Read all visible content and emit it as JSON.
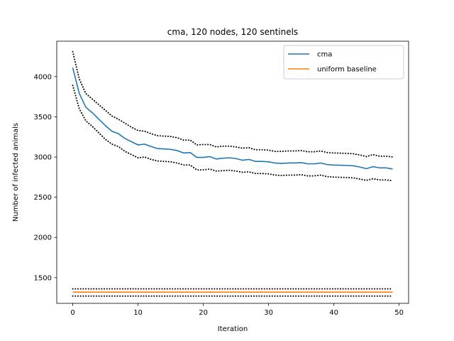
{
  "chart_data": {
    "type": "line",
    "title": "cma, 120 nodes, 120 sentinels",
    "xlabel": "Iteration",
    "ylabel": "Number of infected animals",
    "xlim": [
      -2.45,
      51.45
    ],
    "ylim": [
      1180,
      4440
    ],
    "x_ticks": [
      0,
      10,
      20,
      30,
      40,
      50
    ],
    "y_ticks": [
      1500,
      2000,
      2500,
      3000,
      3500,
      4000
    ],
    "legend_position": "top-right",
    "grid": false,
    "x": [
      0,
      1,
      2,
      3,
      4,
      5,
      6,
      7,
      8,
      9,
      10,
      11,
      12,
      13,
      14,
      15,
      16,
      17,
      18,
      19,
      20,
      21,
      22,
      23,
      24,
      25,
      26,
      27,
      28,
      29,
      30,
      31,
      32,
      33,
      34,
      35,
      36,
      37,
      38,
      39,
      40,
      41,
      42,
      43,
      44,
      45,
      46,
      47,
      48,
      49
    ],
    "series": [
      {
        "name": "cma",
        "color": "#1f77b4",
        "style": "solid",
        "values": [
          4110,
          3790,
          3620,
          3550,
          3470,
          3390,
          3320,
          3290,
          3230,
          3190,
          3150,
          3160,
          3130,
          3105,
          3100,
          3095,
          3080,
          3050,
          3055,
          2995,
          2995,
          3005,
          2975,
          2985,
          2990,
          2980,
          2960,
          2970,
          2945,
          2945,
          2940,
          2925,
          2920,
          2925,
          2925,
          2930,
          2915,
          2915,
          2925,
          2905,
          2900,
          2898,
          2895,
          2890,
          2875,
          2855,
          2880,
          2865,
          2865,
          2850
        ]
      },
      {
        "name": "",
        "color": "#000000",
        "style": "dotted",
        "values": [
          4310,
          3970,
          3790,
          3720,
          3650,
          3580,
          3510,
          3470,
          3420,
          3370,
          3330,
          3320,
          3290,
          3265,
          3260,
          3255,
          3240,
          3210,
          3210,
          3150,
          3155,
          3155,
          3125,
          3135,
          3135,
          3125,
          3110,
          3115,
          3090,
          3090,
          3085,
          3070,
          3070,
          3075,
          3075,
          3080,
          3065,
          3065,
          3075,
          3055,
          3050,
          3048,
          3045,
          3040,
          3025,
          3005,
          3030,
          3010,
          3010,
          3000
        ]
      },
      {
        "name": "",
        "color": "#000000",
        "style": "dotted",
        "values": [
          3890,
          3600,
          3450,
          3380,
          3300,
          3220,
          3160,
          3130,
          3070,
          3030,
          2990,
          3000,
          2970,
          2950,
          2945,
          2940,
          2925,
          2900,
          2900,
          2840,
          2840,
          2850,
          2825,
          2830,
          2835,
          2825,
          2810,
          2815,
          2795,
          2795,
          2790,
          2775,
          2770,
          2775,
          2775,
          2780,
          2765,
          2765,
          2775,
          2755,
          2750,
          2748,
          2745,
          2740,
          2725,
          2710,
          2730,
          2715,
          2715,
          2705
        ]
      },
      {
        "name": "uniform baseline",
        "color": "#ff7f0e",
        "style": "solid",
        "values": [
          1320,
          1320,
          1320,
          1320,
          1320,
          1320,
          1320,
          1320,
          1320,
          1320,
          1320,
          1320,
          1320,
          1320,
          1320,
          1320,
          1320,
          1320,
          1320,
          1320,
          1320,
          1320,
          1320,
          1320,
          1320,
          1320,
          1320,
          1320,
          1320,
          1320,
          1320,
          1320,
          1320,
          1320,
          1320,
          1320,
          1320,
          1320,
          1320,
          1320,
          1320,
          1320,
          1320,
          1320,
          1320,
          1320,
          1320,
          1320,
          1320,
          1320
        ]
      },
      {
        "name": "",
        "color": "#000000",
        "style": "dotted",
        "values": [
          1360,
          1360,
          1360,
          1360,
          1360,
          1360,
          1360,
          1360,
          1360,
          1360,
          1360,
          1360,
          1360,
          1360,
          1360,
          1360,
          1360,
          1360,
          1360,
          1360,
          1360,
          1360,
          1360,
          1360,
          1360,
          1360,
          1360,
          1360,
          1360,
          1360,
          1360,
          1360,
          1360,
          1360,
          1360,
          1360,
          1360,
          1360,
          1360,
          1360,
          1360,
          1360,
          1360,
          1360,
          1360,
          1360,
          1360,
          1360,
          1360,
          1360
        ]
      },
      {
        "name": "",
        "color": "#000000",
        "style": "dotted",
        "values": [
          1270,
          1270,
          1270,
          1270,
          1270,
          1270,
          1270,
          1270,
          1270,
          1270,
          1270,
          1270,
          1270,
          1270,
          1270,
          1270,
          1270,
          1270,
          1270,
          1270,
          1270,
          1270,
          1270,
          1270,
          1270,
          1270,
          1270,
          1270,
          1270,
          1270,
          1270,
          1270,
          1270,
          1270,
          1270,
          1270,
          1270,
          1270,
          1270,
          1270,
          1270,
          1270,
          1270,
          1270,
          1270,
          1270,
          1270,
          1270,
          1270,
          1270
        ]
      }
    ],
    "legend": [
      {
        "label": "cma",
        "color": "#1f77b4"
      },
      {
        "label": "uniform baseline",
        "color": "#ff7f0e"
      }
    ]
  }
}
